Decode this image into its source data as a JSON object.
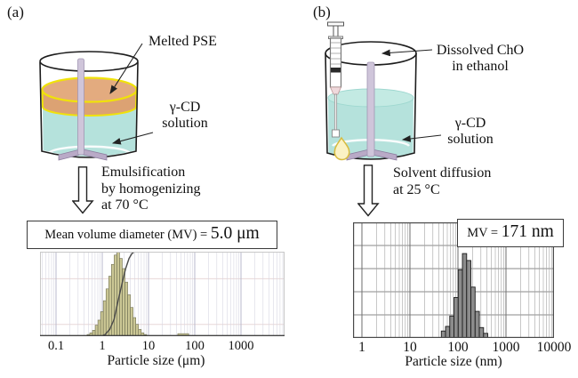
{
  "panel_a": {
    "label": "(a)",
    "beaker_labels": {
      "top_layer": "Melted PSE",
      "solution_line1": "γ-CD",
      "solution_line2": "solution"
    },
    "process_text": [
      "Emulsification",
      "by homogenizing",
      "at 70 °C"
    ]
  },
  "panel_b": {
    "label": "(b)",
    "beaker_labels": {
      "syringe_line1": "Dissolved ChO",
      "syringe_line2": "in ethanol",
      "solution_line1": "γ-CD",
      "solution_line2": "solution"
    },
    "process_text": [
      "Solvent diffusion",
      "at 25 °C"
    ]
  },
  "chart_data": [
    {
      "id": "particle-size-chart-a",
      "type": "bar",
      "title": "Mean volume diameter (MV) = 5.0 μm",
      "mv_box": {
        "prefix": "Mean volume diameter (MV) = ",
        "value": "5.0 μm"
      },
      "xlabel": "Particle size (μm)",
      "x_scale": "log",
      "x_tick_values": [
        0.1,
        1,
        10,
        100,
        1000
      ],
      "x_tick_labels": [
        "0.1",
        "1",
        "10",
        "100",
        "1000"
      ],
      "x_range": [
        0.045,
        8500
      ],
      "ylim": [
        0,
        1
      ],
      "grid": {
        "vertical_minor": true,
        "horizontal_fracs": [
          0.32,
          0.86
        ]
      },
      "bars": {
        "color": "#cbc795",
        "edge": "#6f6f52",
        "start_x": 0.47,
        "log_step": 0.0585,
        "heights": [
          0.02,
          0.04,
          0.07,
          0.13,
          0.19,
          0.29,
          0.42,
          0.56,
          0.71,
          0.85,
          0.96,
          1.0,
          0.92,
          0.8,
          0.64,
          0.49,
          0.34,
          0.22,
          0.14,
          0.08,
          0.04,
          0.02
        ]
      },
      "outlier_bar": {
        "from_x": 43,
        "to_x": 74,
        "height": 0.03
      },
      "cumulative_curve": {
        "color": "#4a4a4a",
        "points": [
          [
            0.95,
            0
          ],
          [
            1.15,
            0.02
          ],
          [
            1.45,
            0.08
          ],
          [
            1.8,
            0.2
          ],
          [
            2.2,
            0.42
          ],
          [
            2.7,
            0.63
          ],
          [
            3.2,
            0.8
          ],
          [
            3.8,
            0.92
          ],
          [
            4.4,
            0.98
          ],
          [
            5.0,
            1.0
          ]
        ]
      }
    },
    {
      "id": "particle-size-chart-b",
      "type": "bar",
      "title": "MV = 171 nm",
      "mv_box": {
        "prefix": "MV = ",
        "value": "171 nm"
      },
      "xlabel": "Particle size (nm)",
      "x_scale": "log",
      "x_tick_values": [
        1,
        10,
        100,
        1000,
        10000
      ],
      "x_tick_labels": [
        "1",
        "10",
        "100",
        "1000",
        "10000"
      ],
      "x_range": [
        0.65,
        10000
      ],
      "ylim": [
        0,
        1
      ],
      "grid": {
        "vertical_minor": true,
        "horizontal_fracs": [
          0.2,
          0.4,
          0.6,
          0.8
        ]
      },
      "bars": {
        "color": "#8c8c8c",
        "edge": "#1c1c1c",
        "start_x": 45,
        "log_step": 0.088,
        "heights": [
          0.06,
          0.1,
          0.19,
          0.35,
          0.59,
          0.73,
          0.67,
          0.44,
          0.23,
          0.09,
          0.04
        ]
      }
    }
  ],
  "colors": {
    "solution": "#b5e2dc",
    "solution_surface": "#c3eae3",
    "melted_pse": "#dca273",
    "melted_pse_top": "#e3ab7f",
    "pse_ring": "#f0e20a",
    "stirrer": "#cfc5da",
    "stirrer_edge": "#a195b2",
    "paddle": "#b9aac7",
    "droplet_fill": "#fbf2c4",
    "droplet_edge": "#d7bb3f",
    "outline": "#1d1d1d"
  }
}
